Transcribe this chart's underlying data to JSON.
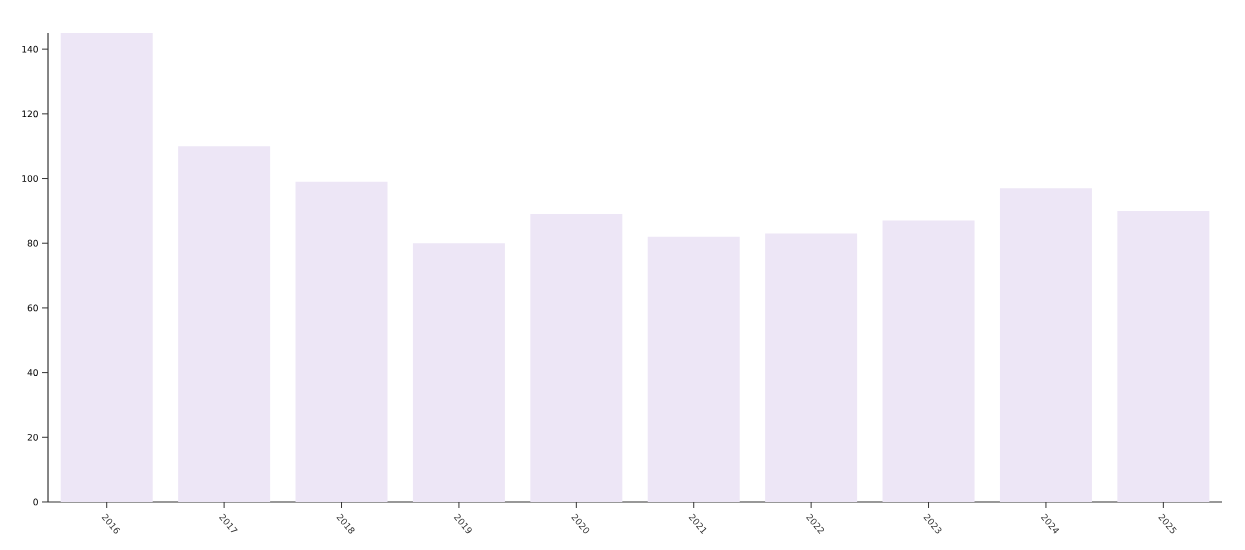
{
  "chart_data": {
    "type": "bar",
    "categories": [
      "2016",
      "2017",
      "2018",
      "2019",
      "2020",
      "2021",
      "2022",
      "2023",
      "2024",
      "2025"
    ],
    "values": [
      145,
      110,
      99,
      80,
      89,
      82,
      83,
      87,
      97,
      90
    ],
    "color": "#ede6f6",
    "ylim": [
      0,
      145
    ],
    "yticks": [
      0,
      20,
      40,
      60,
      80,
      100,
      120,
      140
    ],
    "grid": false
  }
}
